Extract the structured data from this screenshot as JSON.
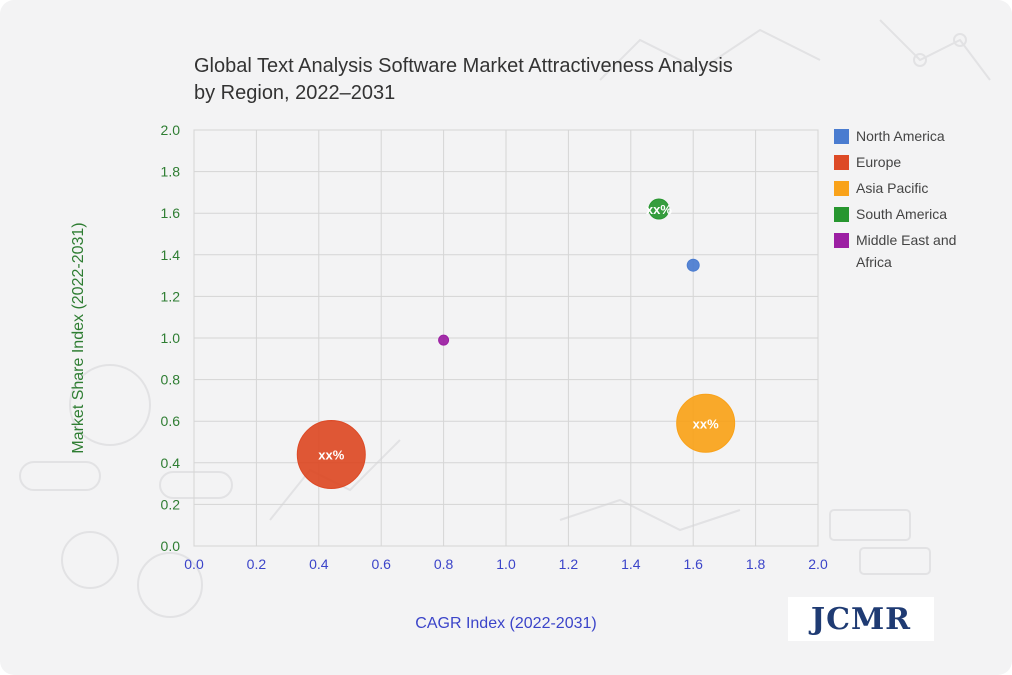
{
  "chart_data": {
    "type": "scatter",
    "title": [
      "Global Text Analysis Software Market Attractiveness Analysis",
      "by Region, 2022–2031"
    ],
    "xlabel": "CAGR Index (2022-2031)",
    "ylabel": "Market Share Index (2022-2031)",
    "xlim": [
      0,
      2
    ],
    "ylim": [
      0,
      2
    ],
    "x_ticks": [
      "0.0",
      "0.2",
      "0.4",
      "0.6",
      "0.8",
      "1.0",
      "1.2",
      "1.4",
      "1.6",
      "1.8",
      "2.0"
    ],
    "y_ticks": [
      "0.0",
      "0.2",
      "0.4",
      "0.6",
      "0.8",
      "1.0",
      "1.2",
      "1.4",
      "1.6",
      "1.8",
      "2.0"
    ],
    "legend_position": "right",
    "series": [
      {
        "name": "North America",
        "legend_lines": [
          "North America"
        ],
        "x": 1.6,
        "y": 1.35,
        "size": 6,
        "color": "#4a7cd0",
        "label": ""
      },
      {
        "name": "Europe",
        "legend_lines": [
          "Europe"
        ],
        "x": 0.44,
        "y": 0.44,
        "size": 34,
        "color": "#dd4a26",
        "label": "xx%"
      },
      {
        "name": "Asia Pacific",
        "legend_lines": [
          "Asia Pacific"
        ],
        "x": 1.64,
        "y": 0.59,
        "size": 29,
        "color": "#f9a21a",
        "label": "xx%"
      },
      {
        "name": "South America",
        "legend_lines": [
          "South America"
        ],
        "x": 1.49,
        "y": 1.62,
        "size": 10,
        "color": "#27962f",
        "label": "xx%"
      },
      {
        "name": "Middle East and Africa",
        "legend_lines": [
          "Middle East and",
          "Africa"
        ],
        "x": 0.8,
        "y": 0.99,
        "size": 5,
        "color": "#9c1fa3",
        "label": ""
      }
    ]
  },
  "brand": {
    "logo_text": "JCMR"
  }
}
